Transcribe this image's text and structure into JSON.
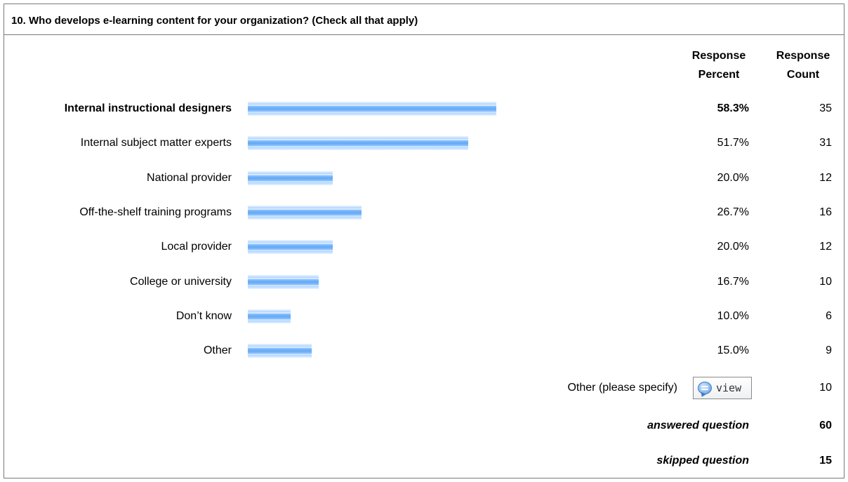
{
  "question": "10. Who develops e-learning content for your organization? (Check all that apply)",
  "headers": {
    "percent": [
      "Response",
      "Percent"
    ],
    "count": [
      "Response",
      "Count"
    ]
  },
  "chart_data": {
    "type": "bar",
    "orientation": "horizontal",
    "title": "10. Who develops e-learning content for your organization? (Check all that apply)",
    "categories": [
      "Internal instructional designers",
      "Internal subject matter experts",
      "National provider",
      "Off-the-shelf training programs",
      "Local provider",
      "College or university",
      "Don’t know",
      "Other"
    ],
    "values": [
      58.3,
      51.7,
      20.0,
      26.7,
      20.0,
      16.7,
      10.0,
      15.0
    ],
    "percent_labels": [
      "58.3%",
      "51.7%",
      "20.0%",
      "26.7%",
      "20.0%",
      "16.7%",
      "10.0%",
      "15.0%"
    ],
    "counts": [
      "35",
      "31",
      "12",
      "16",
      "12",
      "10",
      "6",
      "9"
    ],
    "xlim": [
      0,
      100
    ],
    "highlighted_index": 0
  },
  "other_specify": {
    "label": "Other (please specify)",
    "button_label": "view",
    "count": "10"
  },
  "summary": {
    "answered_label": "answered question",
    "answered_value": "60",
    "skipped_label": "skipped question",
    "skipped_value": "15"
  }
}
